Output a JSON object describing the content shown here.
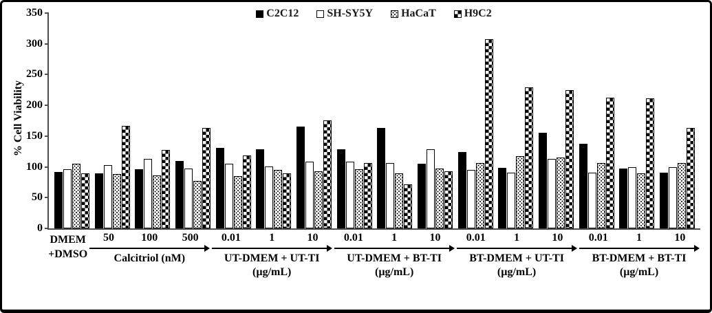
{
  "chart_data": {
    "type": "bar",
    "title": "",
    "ylabel": "% Cell Viability",
    "ylim": [
      0,
      350
    ],
    "yticks": [
      0,
      50,
      100,
      150,
      200,
      250,
      300,
      350
    ],
    "grid": false,
    "legend_position": "top-center",
    "series": [
      {
        "name": "C2C12",
        "pattern": "solid"
      },
      {
        "name": "SH-SY5Y",
        "pattern": "open"
      },
      {
        "name": "HaCaT",
        "pattern": "dotted"
      },
      {
        "name": "H9C2",
        "pattern": "checker"
      }
    ],
    "groups": [
      {
        "label": "DMEM +DMSO",
        "arrow": false,
        "clusters": [
          {
            "tick": "",
            "values": [
              92,
              96,
              105,
              90
            ]
          }
        ]
      },
      {
        "label": "Calcitriol (nM)",
        "arrow": true,
        "clusters": [
          {
            "tick": "50",
            "values": [
              90,
              103,
              88,
              167
            ]
          },
          {
            "tick": "100",
            "values": [
              96,
              113,
              86,
              128
            ]
          },
          {
            "tick": "500",
            "values": [
              110,
              97,
              77,
              163
            ]
          }
        ]
      },
      {
        "label": "UT-DMEM + UT-TI (µg/mL)",
        "arrow": true,
        "clusters": [
          {
            "tick": "0.01",
            "values": [
              131,
              105,
              85,
              119
            ]
          },
          {
            "tick": "1",
            "values": [
              129,
              101,
              95,
              90
            ]
          },
          {
            "tick": "10",
            "values": [
              166,
              108,
              93,
              176
            ]
          }
        ]
      },
      {
        "label": "UT-DMEM + BT-TI (µg/mL)",
        "arrow": true,
        "clusters": [
          {
            "tick": "0.01",
            "values": [
              129,
              108,
              96,
              106
            ]
          },
          {
            "tick": "1",
            "values": [
              163,
              106,
              90,
              72
            ]
          },
          {
            "tick": "10",
            "values": [
              105,
              129,
              97,
              93
            ]
          }
        ]
      },
      {
        "label": "BT-DMEM + UT-TI (µg/mL)",
        "arrow": true,
        "clusters": [
          {
            "tick": "0.01",
            "values": [
              124,
              95,
              106,
              307
            ]
          },
          {
            "tick": "1",
            "values": [
              98,
              91,
              117,
              229
            ]
          },
          {
            "tick": "10",
            "values": [
              155,
              113,
              115,
              225
            ]
          }
        ]
      },
      {
        "label": "BT-DMEM + BT-TI (µg/mL)",
        "arrow": true,
        "clusters": [
          {
            "tick": "0.01",
            "values": [
              137,
              91,
              106,
              213
            ]
          },
          {
            "tick": "1",
            "values": [
              97,
              99,
              90,
              211
            ]
          },
          {
            "tick": "10",
            "values": [
              91,
              99,
              106,
              163
            ]
          }
        ]
      }
    ],
    "colors": {
      "foreground": "#000000",
      "background": "#ffffff",
      "axis": "#4d4d4d"
    }
  }
}
